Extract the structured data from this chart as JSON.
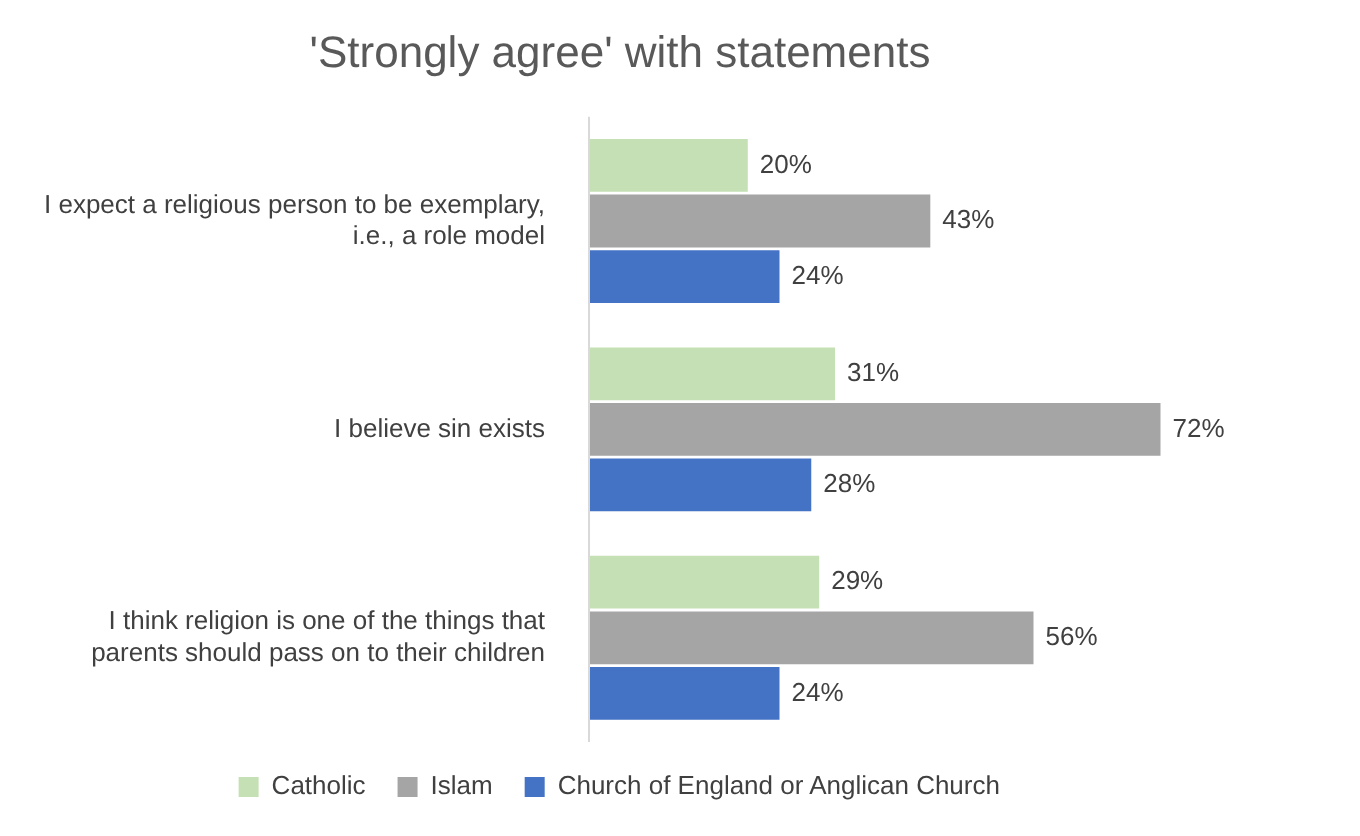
{
  "chart_data": {
    "type": "bar",
    "orientation": "horizontal",
    "title": "'Strongly agree' with statements",
    "categories": [
      "I expect a religious person to be exemplary, i.e., a role model",
      "I believe sin exists",
      "I think religion is one of the things that parents should pass on to their children"
    ],
    "series": [
      {
        "name": "Catholic",
        "color": "#c5e0b4",
        "values": [
          20,
          31,
          29
        ],
        "value_labels": [
          "20%",
          "31%",
          "29%"
        ]
      },
      {
        "name": "Islam",
        "color": "#a5a5a5",
        "values": [
          43,
          72,
          56
        ],
        "value_labels": [
          "43%",
          "72%",
          "56%"
        ]
      },
      {
        "name": "Church of England or Anglican Church",
        "color": "#4472c4",
        "values": [
          24,
          28,
          24
        ],
        "value_labels": [
          "24%",
          "28%",
          "24%"
        ]
      }
    ],
    "legend": "bottom"
  }
}
